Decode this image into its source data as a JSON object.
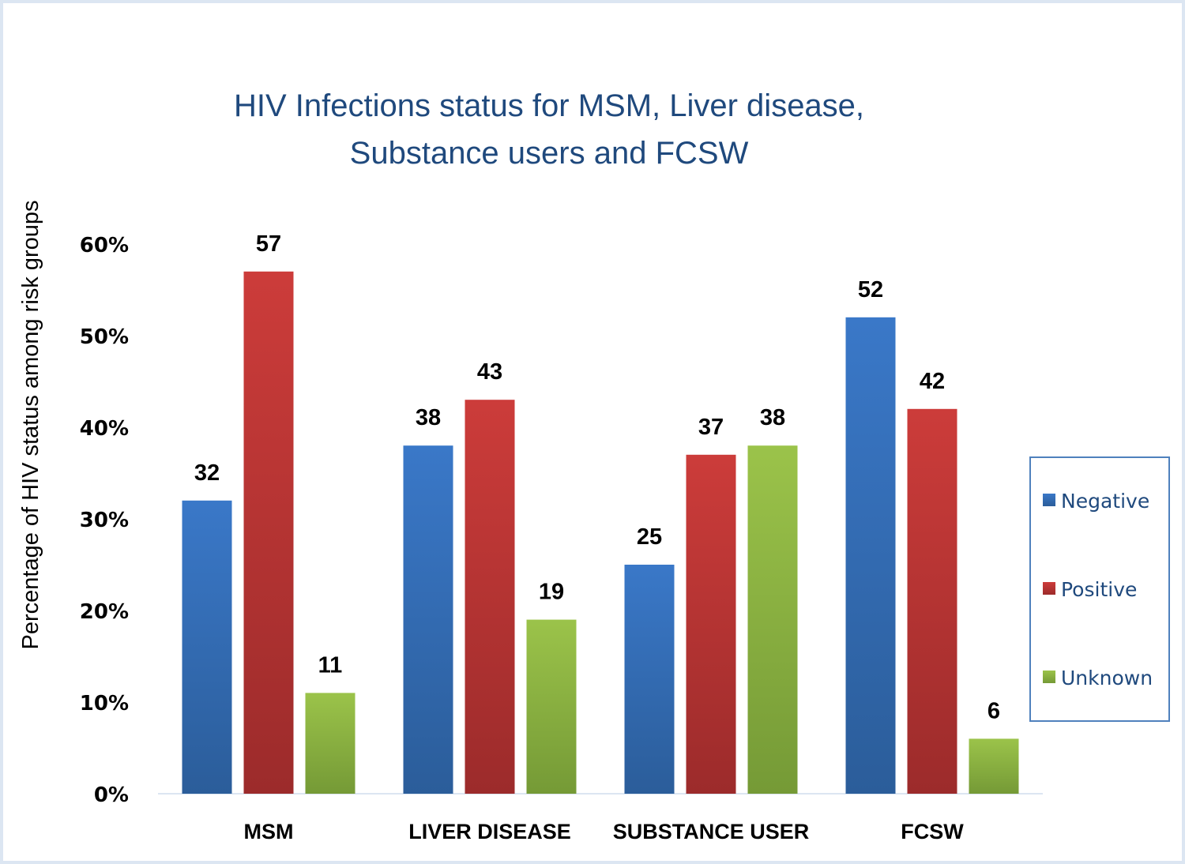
{
  "chart_data": {
    "type": "bar",
    "title": "HIV Infections status for MSM, Liver disease, Substance users and FCSW",
    "title_lines": [
      "HIV Infections status for MSM, Liver disease,",
      "Substance users and FCSW"
    ],
    "xlabel": "",
    "ylabel": "Percentage of HIV status  among  risk groups",
    "categories": [
      "MSM",
      "LIVER DISEASE",
      "SUBSTANCE USER",
      "FCSW"
    ],
    "series": [
      {
        "name": "Negative",
        "values": [
          32,
          38,
          25,
          52
        ],
        "color": "#3a78c8",
        "color_dark": "#2b5d9a"
      },
      {
        "name": "Positive",
        "values": [
          57,
          43,
          37,
          42
        ],
        "color": "#cc3c3a",
        "color_dark": "#9c2b2b"
      },
      {
        "name": "Unknown",
        "values": [
          11,
          19,
          38,
          6
        ],
        "color": "#9bc34a",
        "color_dark": "#759a36"
      }
    ],
    "ylim": [
      0,
      60
    ],
    "yticks": [
      0,
      10,
      20,
      30,
      40,
      50,
      60
    ],
    "ytick_labels": [
      "0%",
      "10%",
      "20%",
      "30%",
      "40%",
      "50%",
      "60%"
    ],
    "grid": false,
    "data_labels": true,
    "legend": {
      "position": "right",
      "entries": [
        "Negative",
        "Positive",
        "Unknown"
      ]
    }
  }
}
